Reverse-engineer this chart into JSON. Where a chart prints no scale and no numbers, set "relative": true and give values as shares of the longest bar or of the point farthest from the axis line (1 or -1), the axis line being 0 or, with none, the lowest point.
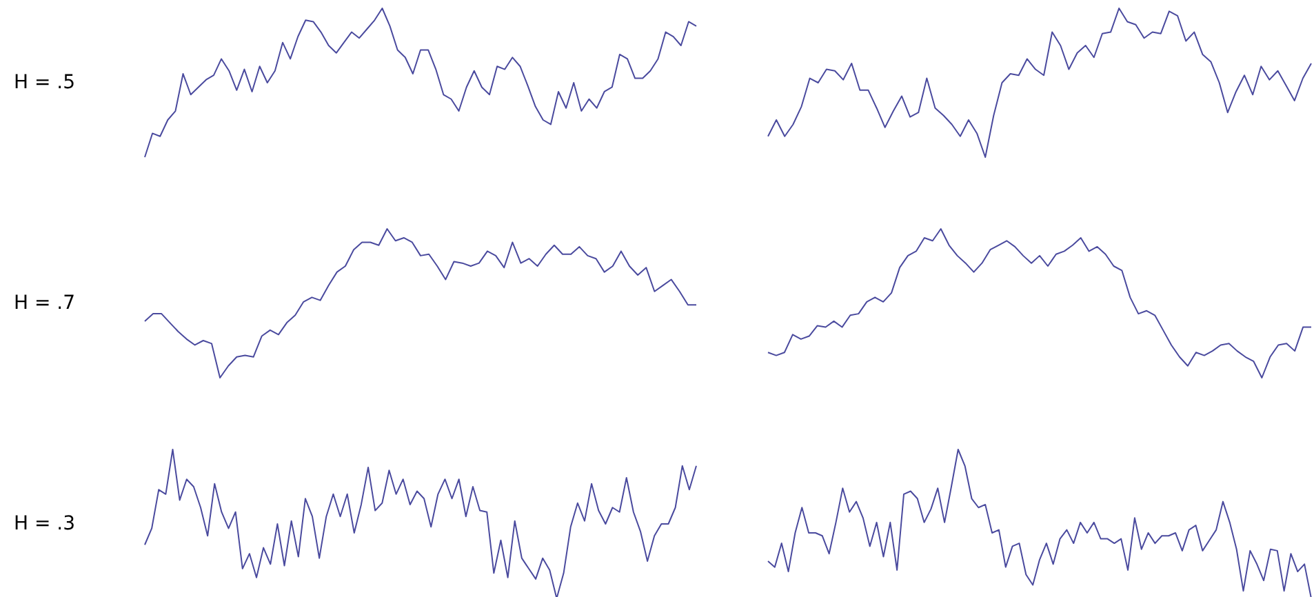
{
  "chart_data": [
    {
      "type": "line",
      "ylabel": "H = .5",
      "relative": true,
      "marker": "none",
      "categories": [
        null,
        null,
        null,
        null,
        null,
        null,
        null,
        null,
        null,
        null,
        null,
        null,
        null,
        null,
        null,
        null,
        null,
        null,
        null,
        null,
        null,
        null,
        null,
        null,
        null,
        null,
        null,
        null,
        null,
        null,
        null,
        null,
        null,
        null,
        null,
        null,
        null,
        null,
        null,
        null,
        null,
        null,
        null,
        null,
        null,
        null,
        null,
        null,
        null,
        null,
        null,
        null,
        null,
        null,
        null,
        null,
        null,
        null,
        null,
        null,
        null,
        null,
        null,
        null,
        null,
        null,
        null,
        null,
        null,
        null,
        null,
        null,
        null
      ],
      "series": [
        {
          "color": "#4a4a9e",
          "values": [
            0,
            0.16,
            0.14,
            0.25,
            0.31,
            0.56,
            0.42,
            0.47,
            0.52,
            0.55,
            0.66,
            0.58,
            0.45,
            0.59,
            0.44,
            0.61,
            0.5,
            0.58,
            0.77,
            0.66,
            0.81,
            0.92,
            0.91,
            0.84,
            0.75,
            0.7,
            0.77,
            0.84,
            0.8,
            0.86,
            0.92,
            1,
            0.88,
            0.72,
            0.67,
            0.56,
            0.72,
            0.72,
            0.59,
            0.42,
            0.39,
            0.31,
            0.47,
            0.58,
            0.47,
            0.42,
            0.61,
            0.59,
            0.67,
            0.61,
            0.48,
            0.34,
            0.25,
            0.22,
            0.44,
            0.33,
            0.5,
            0.31,
            0.39,
            0.33,
            0.44,
            0.47,
            0.69,
            0.66,
            0.53,
            0.53,
            0.58,
            0.66,
            0.84,
            0.81,
            0.75,
            0.91,
            0.88
          ]
        }
      ]
    },
    {
      "type": "line",
      "relative": true,
      "marker": "none",
      "categories": [
        null,
        null,
        null,
        null,
        null,
        null,
        null,
        null,
        null,
        null,
        null,
        null,
        null,
        null,
        null,
        null,
        null,
        null,
        null,
        null,
        null,
        null,
        null,
        null,
        null,
        null,
        null,
        null,
        null,
        null,
        null,
        null,
        null,
        null,
        null,
        null,
        null,
        null,
        null,
        null,
        null,
        null,
        null,
        null,
        null,
        null,
        null,
        null,
        null,
        null,
        null,
        null,
        null,
        null,
        null,
        null,
        null,
        null,
        null,
        null,
        null,
        null,
        null,
        null,
        null,
        null
      ],
      "series": [
        {
          "color": "#4a4a9e",
          "values": [
            0.14,
            0.25,
            0.14,
            0.22,
            0.34,
            0.53,
            0.5,
            0.59,
            0.58,
            0.52,
            0.63,
            0.45,
            0.45,
            0.33,
            0.2,
            0.31,
            0.41,
            0.27,
            0.3,
            0.53,
            0.33,
            0.28,
            0.22,
            0.14,
            0.25,
            0.16,
            0,
            0.28,
            0.5,
            0.56,
            0.55,
            0.66,
            0.59,
            0.55,
            0.84,
            0.75,
            0.59,
            0.7,
            0.75,
            0.67,
            0.83,
            0.84,
            1,
            0.91,
            0.89,
            0.8,
            0.84,
            0.83,
            0.98,
            0.95,
            0.78,
            0.84,
            0.69,
            0.64,
            0.5,
            0.3,
            0.44,
            0.55,
            0.42,
            0.61,
            0.52,
            0.58,
            0.48,
            0.38,
            0.53,
            0.63
          ]
        }
      ]
    },
    {
      "type": "line",
      "ylabel": "H = .7",
      "relative": true,
      "marker": "none",
      "categories": [
        null,
        null,
        null,
        null,
        null,
        null,
        null,
        null,
        null,
        null,
        null,
        null,
        null,
        null,
        null,
        null,
        null,
        null,
        null,
        null,
        null,
        null,
        null,
        null,
        null,
        null,
        null,
        null,
        null,
        null,
        null,
        null,
        null,
        null,
        null,
        null,
        null,
        null,
        null,
        null,
        null,
        null,
        null,
        null,
        null,
        null,
        null,
        null,
        null,
        null,
        null,
        null,
        null,
        null,
        null,
        null,
        null,
        null,
        null,
        null,
        null,
        null,
        null,
        null,
        null,
        null,
        null
      ],
      "series": [
        {
          "color": "#4a4a9e",
          "values": [
            0.38,
            0.43,
            0.43,
            0.37,
            0.31,
            0.26,
            0.22,
            0.25,
            0.23,
            0,
            0.08,
            0.14,
            0.15,
            0.14,
            0.28,
            0.32,
            0.29,
            0.37,
            0.42,
            0.51,
            0.54,
            0.52,
            0.62,
            0.71,
            0.75,
            0.86,
            0.91,
            0.91,
            0.89,
            1,
            0.92,
            0.94,
            0.91,
            0.82,
            0.83,
            0.75,
            0.66,
            0.78,
            0.77,
            0.75,
            0.77,
            0.85,
            0.82,
            0.74,
            0.91,
            0.77,
            0.8,
            0.75,
            0.83,
            0.89,
            0.83,
            0.83,
            0.88,
            0.82,
            0.8,
            0.71,
            0.75,
            0.85,
            0.75,
            0.69,
            0.74,
            0.58,
            0.62,
            0.66,
            0.58,
            0.49,
            0.49
          ]
        }
      ]
    },
    {
      "type": "line",
      "relative": true,
      "marker": "none",
      "categories": [
        null,
        null,
        null,
        null,
        null,
        null,
        null,
        null,
        null,
        null,
        null,
        null,
        null,
        null,
        null,
        null,
        null,
        null,
        null,
        null,
        null,
        null,
        null,
        null,
        null,
        null,
        null,
        null,
        null,
        null,
        null,
        null,
        null,
        null,
        null,
        null,
        null,
        null,
        null,
        null,
        null,
        null,
        null,
        null,
        null,
        null,
        null,
        null,
        null,
        null,
        null,
        null,
        null,
        null,
        null,
        null,
        null,
        null,
        null,
        null,
        null,
        null,
        null,
        null,
        null,
        null,
        null
      ],
      "series": [
        {
          "color": "#4a4a9e",
          "values": [
            0.17,
            0.15,
            0.17,
            0.29,
            0.26,
            0.28,
            0.35,
            0.34,
            0.38,
            0.34,
            0.42,
            0.43,
            0.51,
            0.54,
            0.51,
            0.57,
            0.74,
            0.82,
            0.85,
            0.94,
            0.92,
            1,
            0.89,
            0.82,
            0.77,
            0.71,
            0.77,
            0.86,
            0.89,
            0.92,
            0.88,
            0.82,
            0.77,
            0.82,
            0.75,
            0.83,
            0.85,
            0.89,
            0.94,
            0.85,
            0.88,
            0.83,
            0.75,
            0.72,
            0.54,
            0.43,
            0.45,
            0.42,
            0.32,
            0.22,
            0.14,
            0.08,
            0.17,
            0.15,
            0.18,
            0.22,
            0.23,
            0.18,
            0.14,
            0.11,
            0,
            0.14,
            0.22,
            0.23,
            0.18,
            0.34,
            0.34
          ]
        }
      ]
    },
    {
      "type": "line",
      "ylabel": "H = .3",
      "relative": true,
      "marker": "none",
      "categories": [
        null,
        null,
        null,
        null,
        null,
        null,
        null,
        null,
        null,
        null,
        null,
        null,
        null,
        null,
        null,
        null,
        null,
        null,
        null,
        null,
        null,
        null,
        null,
        null,
        null,
        null,
        null,
        null,
        null,
        null,
        null,
        null,
        null,
        null,
        null,
        null,
        null,
        null,
        null,
        null,
        null,
        null,
        null,
        null,
        null,
        null,
        null,
        null,
        null,
        null,
        null,
        null,
        null,
        null,
        null,
        null,
        null,
        null,
        null,
        null,
        null,
        null,
        null,
        null,
        null,
        null,
        null,
        null,
        null,
        null,
        null,
        null,
        null,
        null,
        null,
        null,
        null,
        null,
        null,
        null
      ],
      "series": [
        {
          "color": "#4a4a9e",
          "values": [
            0.36,
            0.47,
            0.73,
            0.7,
            1,
            0.66,
            0.8,
            0.75,
            0.61,
            0.42,
            0.77,
            0.58,
            0.47,
            0.58,
            0.2,
            0.3,
            0.14,
            0.34,
            0.23,
            0.5,
            0.22,
            0.52,
            0.28,
            0.67,
            0.55,
            0.27,
            0.55,
            0.7,
            0.55,
            0.7,
            0.44,
            0.63,
            0.88,
            0.59,
            0.64,
            0.86,
            0.7,
            0.8,
            0.63,
            0.72,
            0.67,
            0.48,
            0.7,
            0.8,
            0.67,
            0.8,
            0.55,
            0.75,
            0.59,
            0.58,
            0.17,
            0.39,
            0.14,
            0.52,
            0.27,
            0.2,
            0.13,
            0.27,
            0.19,
            0,
            0.17,
            0.48,
            0.64,
            0.52,
            0.77,
            0.59,
            0.5,
            0.61,
            0.58,
            0.81,
            0.58,
            0.45,
            0.25,
            0.42,
            0.5,
            0.5,
            0.61,
            0.89,
            0.73,
            0.89
          ]
        }
      ]
    },
    {
      "type": "line",
      "relative": true,
      "marker": "none",
      "categories": [
        null,
        null,
        null,
        null,
        null,
        null,
        null,
        null,
        null,
        null,
        null,
        null,
        null,
        null,
        null,
        null,
        null,
        null,
        null,
        null,
        null,
        null,
        null,
        null,
        null,
        null,
        null,
        null,
        null,
        null,
        null,
        null,
        null,
        null,
        null,
        null,
        null,
        null,
        null,
        null,
        null,
        null,
        null,
        null,
        null,
        null,
        null,
        null,
        null,
        null,
        null,
        null,
        null,
        null,
        null,
        null,
        null,
        null,
        null,
        null,
        null,
        null,
        null,
        null,
        null,
        null,
        null,
        null,
        null,
        null,
        null,
        null,
        null,
        null,
        null,
        null,
        null,
        null,
        null,
        null,
        null
      ],
      "series": [
        {
          "color": "#4a4a9e",
          "values": [
            0.25,
            0.21,
            0.37,
            0.18,
            0.44,
            0.61,
            0.44,
            0.44,
            0.42,
            0.3,
            0.51,
            0.74,
            0.58,
            0.65,
            0.54,
            0.35,
            0.51,
            0.28,
            0.51,
            0.19,
            0.7,
            0.72,
            0.67,
            0.51,
            0.6,
            0.74,
            0.51,
            0.75,
            1,
            0.89,
            0.67,
            0.61,
            0.63,
            0.44,
            0.46,
            0.21,
            0.35,
            0.37,
            0.16,
            0.09,
            0.26,
            0.37,
            0.23,
            0.4,
            0.46,
            0.37,
            0.51,
            0.44,
            0.51,
            0.4,
            0.4,
            0.37,
            0.4,
            0.19,
            0.54,
            0.33,
            0.44,
            0.37,
            0.42,
            0.42,
            0.44,
            0.32,
            0.46,
            0.49,
            0.32,
            0.39,
            0.46,
            0.65,
            0.51,
            0.33,
            0.05,
            0.32,
            0.23,
            0.12,
            0.33,
            0.32,
            0.05,
            0.3,
            0.18,
            0.23,
            0
          ]
        }
      ]
    }
  ]
}
